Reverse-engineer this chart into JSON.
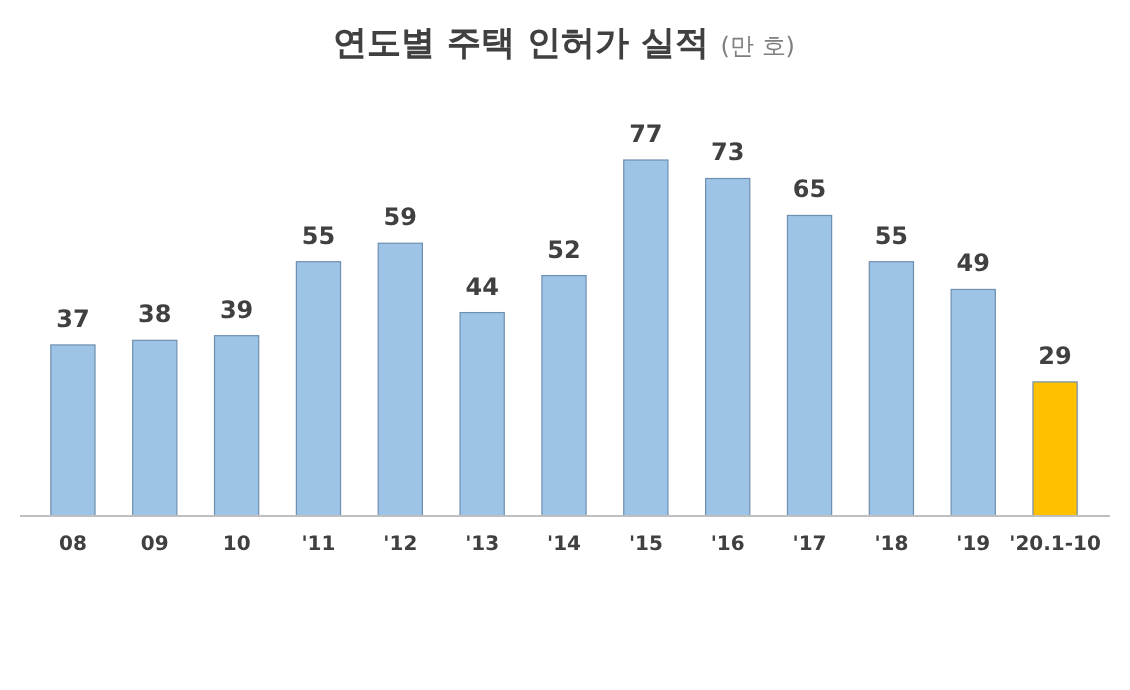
{
  "chart_data": {
    "type": "bar",
    "title": "연도별 주택 인허가 실적",
    "subtitle": "(만 호)",
    "categories": [
      "08",
      "09",
      "10",
      "'11",
      "'12",
      "'13",
      "'14",
      "'15",
      "'16",
      "'17",
      "'18",
      "'19",
      "'20.1-10"
    ],
    "values": [
      37,
      38,
      39,
      55,
      59,
      44,
      52,
      77,
      73,
      65,
      55,
      49,
      29
    ],
    "colors": [
      "#9dc3e6",
      "#9dc3e6",
      "#9dc3e6",
      "#9dc3e6",
      "#9dc3e6",
      "#9dc3e6",
      "#9dc3e6",
      "#9dc3e6",
      "#9dc3e6",
      "#9dc3e6",
      "#9dc3e6",
      "#9dc3e6",
      "#ffc000"
    ],
    "data_labels": true
  }
}
